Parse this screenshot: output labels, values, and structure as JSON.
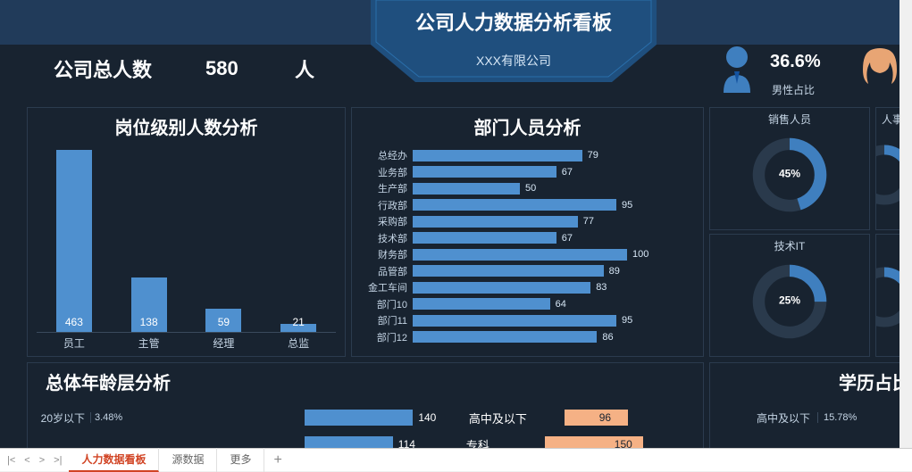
{
  "header": {
    "title": "公司人力数据分析看板",
    "company": "XXX有限公司",
    "total_label": "公司总人数",
    "total_value": "580",
    "total_unit": "人",
    "male_pct": "36.6%",
    "male_label": "男性占比",
    "banner_color": "#1f4f7e",
    "banner_color2": "#2a5f94"
  },
  "colors": {
    "bg": "#182330",
    "bar": "#4f90cf",
    "bar2": "#f5b185",
    "donut_track": "#2a3a4c",
    "donut_fill": "#3f7fbf",
    "text_muted": "#c5d5e5"
  },
  "job_level": {
    "title": "岗位级别人数分析",
    "max": 463,
    "items": [
      {
        "label": "员工",
        "value": 463
      },
      {
        "label": "主管",
        "value": 138
      },
      {
        "label": "经理",
        "value": 59
      },
      {
        "label": "总监",
        "value": 21
      }
    ]
  },
  "dept": {
    "title": "部门人员分析",
    "max": 100,
    "items": [
      {
        "label": "总经办",
        "value": 79
      },
      {
        "label": "业务部",
        "value": 67
      },
      {
        "label": "生产部",
        "value": 50
      },
      {
        "label": "行政部",
        "value": 95
      },
      {
        "label": "采购部",
        "value": 77
      },
      {
        "label": "技术部",
        "value": 67
      },
      {
        "label": "财务部",
        "value": 100
      },
      {
        "label": "品管部",
        "value": 89
      },
      {
        "label": "金工车间",
        "value": 83
      },
      {
        "label": "部门10",
        "value": 64
      },
      {
        "label": "部门11",
        "value": 95
      },
      {
        "label": "部门12",
        "value": 86
      }
    ]
  },
  "donuts": [
    {
      "title": "销售人员",
      "pct": 45,
      "label": "45%"
    },
    {
      "title": "人事",
      "pct": 30,
      "label": ""
    },
    {
      "title": "技术IT",
      "pct": 25,
      "label": "25%"
    },
    {
      "title": "",
      "pct": 20,
      "label": ""
    }
  ],
  "age": {
    "title": "总体年龄层分析",
    "rows": [
      {
        "label": "20岁以下",
        "pct": "3.48%",
        "v1": 140,
        "cat": "高中及以下",
        "v2": 96
      },
      {
        "label": "",
        "pct": "",
        "v1": 114,
        "cat": "专科",
        "v2": 150
      }
    ],
    "max1": 150,
    "max2": 150
  },
  "edu": {
    "title": "学历占比",
    "rows": [
      {
        "label": "高中及以下",
        "pct": "15.78%"
      }
    ]
  },
  "tabs": {
    "items": [
      "人力数据看板",
      "源数据",
      "更多"
    ],
    "active": 0
  }
}
